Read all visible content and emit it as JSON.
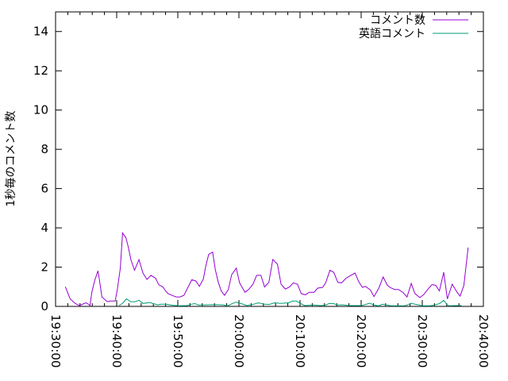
{
  "chart_data": {
    "type": "line",
    "title": "",
    "xlabel": "",
    "ylabel": "1秒毎のコメント数",
    "xlim": [
      "19:30:00",
      "20:40:00"
    ],
    "ylim": [
      0,
      15
    ],
    "x_ticks": [
      "19:30:00",
      "19:40:00",
      "19:50:00",
      "20:00:00",
      "20:10:00",
      "20:20:00",
      "20:30:00",
      "20:40:00"
    ],
    "y_ticks": [
      "0",
      "2",
      "4",
      "6",
      "8",
      "10",
      "12",
      "14"
    ],
    "grid": false,
    "legend_position": "top-right",
    "series": [
      {
        "name": "コメント数",
        "color": "#9400d3",
        "points": [
          [
            "19:31:36",
            1.0
          ],
          [
            "19:32:23",
            0.38
          ],
          [
            "19:33:15",
            0.14
          ],
          [
            "19:33:54",
            0.04
          ],
          [
            "19:34:20",
            0.1
          ],
          [
            "19:34:59",
            0.18
          ],
          [
            "19:35:25",
            0.1
          ],
          [
            "19:35:38",
            0.04
          ],
          [
            "19:35:56",
            0.72
          ],
          [
            "19:36:25",
            1.33
          ],
          [
            "19:36:56",
            1.81
          ],
          [
            "19:37:09",
            1.4
          ],
          [
            "19:37:35",
            0.48
          ],
          [
            "19:38:27",
            0.24
          ],
          [
            "19:38:54",
            0.27
          ],
          [
            "19:39:45",
            0.27
          ],
          [
            "19:40:06",
            0.86
          ],
          [
            "19:40:36",
            1.95
          ],
          [
            "19:40:58",
            3.74
          ],
          [
            "19:41:30",
            3.5
          ],
          [
            "19:41:54",
            3.03
          ],
          [
            "19:42:21",
            2.35
          ],
          [
            "19:42:55",
            1.84
          ],
          [
            "19:43:39",
            2.38
          ],
          [
            "19:44:18",
            1.7
          ],
          [
            "19:44:58",
            1.37
          ],
          [
            "19:45:36",
            1.58
          ],
          [
            "19:46:21",
            1.44
          ],
          [
            "19:46:54",
            1.1
          ],
          [
            "19:47:34",
            0.99
          ],
          [
            "19:48:00",
            0.79
          ],
          [
            "19:48:24",
            0.65
          ],
          [
            "19:49:04",
            0.56
          ],
          [
            "19:49:43",
            0.48
          ],
          [
            "19:50:22",
            0.48
          ],
          [
            "19:51:00",
            0.56
          ],
          [
            "19:51:40",
            0.97
          ],
          [
            "19:52:18",
            1.36
          ],
          [
            "19:52:58",
            1.29
          ],
          [
            "19:53:32",
            1.02
          ],
          [
            "19:54:11",
            1.4
          ],
          [
            "19:54:36",
            2.08
          ],
          [
            "19:55:03",
            2.65
          ],
          [
            "19:55:42",
            2.76
          ],
          [
            "19:56:08",
            1.88
          ],
          [
            "19:56:39",
            1.2
          ],
          [
            "19:57:06",
            0.79
          ],
          [
            "19:57:39",
            0.56
          ],
          [
            "19:58:16",
            0.86
          ],
          [
            "19:58:48",
            1.61
          ],
          [
            "19:59:34",
            1.95
          ],
          [
            "20:00:06",
            1.2
          ],
          [
            "20:01:00",
            0.72
          ],
          [
            "20:01:36",
            0.86
          ],
          [
            "20:02:18",
            1.13
          ],
          [
            "20:02:54",
            1.58
          ],
          [
            "20:03:36",
            1.58
          ],
          [
            "20:04:12",
            0.99
          ],
          [
            "20:04:54",
            1.22
          ],
          [
            "20:05:33",
            2.39
          ],
          [
            "20:06:18",
            2.15
          ],
          [
            "20:06:54",
            1.13
          ],
          [
            "20:07:36",
            0.88
          ],
          [
            "20:08:18",
            0.99
          ],
          [
            "20:08:54",
            1.2
          ],
          [
            "20:09:36",
            1.13
          ],
          [
            "20:10:12",
            0.65
          ],
          [
            "20:10:54",
            0.59
          ],
          [
            "20:11:30",
            0.72
          ],
          [
            "20:12:18",
            0.72
          ],
          [
            "20:12:54",
            0.93
          ],
          [
            "20:13:42",
            0.97
          ],
          [
            "20:14:12",
            1.2
          ],
          [
            "20:14:54",
            1.84
          ],
          [
            "20:15:30",
            1.74
          ],
          [
            "20:16:12",
            1.22
          ],
          [
            "20:16:48",
            1.2
          ],
          [
            "20:17:30",
            1.43
          ],
          [
            "20:18:18",
            1.58
          ],
          [
            "20:19:00",
            1.7
          ],
          [
            "20:19:36",
            1.26
          ],
          [
            "20:20:12",
            0.97
          ],
          [
            "20:20:42",
            1.02
          ],
          [
            "20:21:30",
            0.84
          ],
          [
            "20:22:06",
            0.5
          ],
          [
            "20:22:54",
            0.93
          ],
          [
            "20:23:36",
            1.5
          ],
          [
            "20:24:18",
            1.07
          ],
          [
            "20:24:48",
            0.95
          ],
          [
            "20:25:30",
            0.86
          ],
          [
            "20:26:06",
            0.86
          ],
          [
            "20:26:48",
            0.72
          ],
          [
            "20:27:30",
            0.48
          ],
          [
            "20:28:12",
            1.17
          ],
          [
            "20:28:48",
            0.65
          ],
          [
            "20:29:36",
            0.45
          ],
          [
            "20:30:12",
            0.59
          ],
          [
            "20:31:00",
            0.9
          ],
          [
            "20:31:36",
            1.11
          ],
          [
            "20:32:12",
            1.07
          ],
          [
            "20:32:48",
            0.79
          ],
          [
            "20:33:30",
            1.74
          ],
          [
            "20:34:06",
            0.38
          ],
          [
            "20:34:54",
            1.13
          ],
          [
            "20:35:42",
            0.72
          ],
          [
            "20:36:12",
            0.52
          ],
          [
            "20:36:48",
            1.07
          ],
          [
            "20:37:30",
            3.0
          ]
        ]
      },
      {
        "name": "英語コメント",
        "color": "#009e73",
        "points": [
          [
            "19:40:24",
            0.04
          ],
          [
            "19:41:03",
            0.18
          ],
          [
            "19:41:36",
            0.39
          ],
          [
            "19:42:16",
            0.24
          ],
          [
            "19:43:00",
            0.24
          ],
          [
            "19:43:39",
            0.31
          ],
          [
            "19:44:18",
            0.15
          ],
          [
            "19:45:24",
            0.2
          ],
          [
            "19:46:00",
            0.14
          ],
          [
            "19:46:42",
            0.08
          ],
          [
            "19:47:18",
            0.11
          ],
          [
            "19:48:06",
            0.11
          ],
          [
            "19:49:06",
            0.06
          ],
          [
            "19:50:12",
            0.03
          ],
          [
            "19:51:30",
            0.04
          ],
          [
            "19:52:12",
            0.11
          ],
          [
            "19:52:48",
            0.14
          ],
          [
            "19:53:24",
            0.07
          ],
          [
            "19:56:00",
            0.09
          ],
          [
            "19:57:18",
            0.08
          ],
          [
            "19:58:06",
            0.03
          ],
          [
            "19:59:30",
            0.22
          ],
          [
            "20:00:24",
            0.14
          ],
          [
            "20:01:18",
            0.04
          ],
          [
            "20:02:24",
            0.11
          ],
          [
            "20:03:12",
            0.18
          ],
          [
            "20:04:06",
            0.11
          ],
          [
            "20:05:00",
            0.1
          ],
          [
            "20:05:48",
            0.18
          ],
          [
            "20:06:54",
            0.15
          ],
          [
            "20:08:06",
            0.18
          ],
          [
            "20:08:48",
            0.27
          ],
          [
            "20:09:24",
            0.27
          ],
          [
            "20:10:06",
            0.14
          ],
          [
            "20:10:48",
            0.04
          ],
          [
            "20:12:06",
            0.07
          ],
          [
            "20:13:24",
            0.04
          ],
          [
            "20:14:12",
            0.07
          ],
          [
            "20:14:48",
            0.15
          ],
          [
            "20:15:30",
            0.14
          ],
          [
            "20:16:06",
            0.07
          ],
          [
            "20:17:00",
            0.08
          ],
          [
            "20:18:00",
            0.04
          ],
          [
            "20:19:00",
            0.04
          ],
          [
            "20:20:06",
            0.04
          ],
          [
            "20:21:24",
            0.16
          ],
          [
            "20:22:06",
            0.07
          ],
          [
            "20:22:48",
            0.03
          ],
          [
            "20:23:30",
            0.11
          ],
          [
            "20:24:12",
            0.07
          ],
          [
            "20:24:54",
            0.03
          ],
          [
            "20:27:00",
            0.03
          ],
          [
            "20:27:30",
            0.07
          ],
          [
            "20:28:12",
            0.16
          ],
          [
            "20:28:48",
            0.11
          ],
          [
            "20:29:30",
            0.07
          ],
          [
            "20:30:00",
            0.03
          ],
          [
            "20:31:18",
            0.03
          ],
          [
            "20:32:00",
            0.07
          ],
          [
            "20:32:48",
            0.14
          ],
          [
            "20:33:30",
            0.31
          ],
          [
            "20:34:06",
            0.07
          ],
          [
            "20:34:30",
            0.03
          ],
          [
            "20:35:18",
            0.04
          ],
          [
            "20:36:24",
            0.04
          ]
        ]
      }
    ]
  }
}
